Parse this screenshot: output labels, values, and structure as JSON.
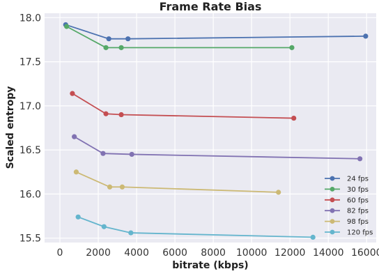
{
  "chart_data": {
    "type": "line",
    "title": "Frame Rate Bias",
    "xlabel": "bitrate (kbps)",
    "ylabel": "Scaled entropy",
    "xlim": [
      -800,
      16500
    ],
    "ylim": [
      15.45,
      18.05
    ],
    "xticks": [
      0,
      2000,
      4000,
      6000,
      8000,
      10000,
      12000,
      14000,
      16000
    ],
    "yticks": [
      15.5,
      16.0,
      16.5,
      17.0,
      17.5,
      18.0
    ],
    "xtick_labels": [
      "0",
      "2000",
      "4000",
      "6000",
      "8000",
      "10000",
      "12000",
      "14000",
      "16000"
    ],
    "ytick_labels": [
      "15.5",
      "16.0",
      "16.5",
      "17.0",
      "17.5",
      "18.0"
    ],
    "grid": true,
    "legend_position": "lower-right",
    "series": [
      {
        "name": "24 fps",
        "color": "#4c72b0",
        "x": [
          300,
          2550,
          3550,
          15950
        ],
        "y": [
          17.92,
          17.76,
          17.76,
          17.79
        ]
      },
      {
        "name": "30 fps",
        "color": "#55a868",
        "x": [
          350,
          2400,
          3200,
          12100
        ],
        "y": [
          17.9,
          17.66,
          17.66,
          17.66
        ]
      },
      {
        "name": "60 fps",
        "color": "#c44e52",
        "x": [
          650,
          2400,
          3200,
          12200
        ],
        "y": [
          17.14,
          16.91,
          16.9,
          16.86
        ]
      },
      {
        "name": "82 fps",
        "color": "#8172b2",
        "x": [
          750,
          2250,
          3750,
          15650
        ],
        "y": [
          16.65,
          16.46,
          16.45,
          16.4
        ]
      },
      {
        "name": "98 fps",
        "color": "#ccb974",
        "x": [
          850,
          2600,
          3250,
          11400
        ],
        "y": [
          16.25,
          16.08,
          16.08,
          16.02
        ]
      },
      {
        "name": "120 fps",
        "color": "#64b5cd",
        "x": [
          950,
          2300,
          3700,
          13200
        ],
        "y": [
          15.74,
          15.63,
          15.56,
          15.51
        ]
      }
    ]
  }
}
